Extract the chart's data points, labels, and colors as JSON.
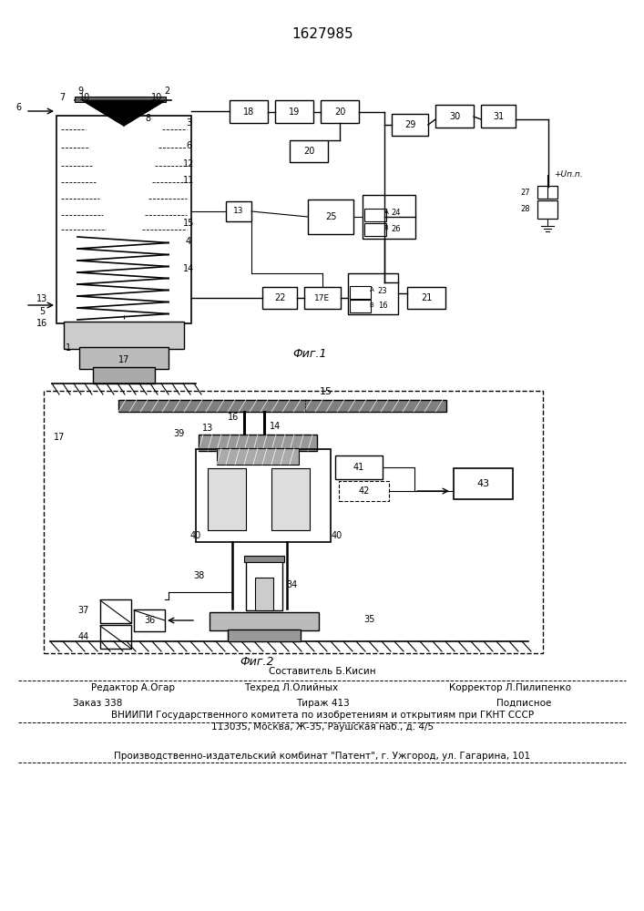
{
  "patent_number": "1627985",
  "fig1_label": "Фиг.1",
  "fig2_label": "Фиг.2",
  "bg_color": "#ffffff",
  "lc": "#1a1a1a",
  "footer": {
    "author": "Составитель Б.Кисин",
    "editor": "Редактор А.Огар",
    "tech": "Техред Л.Олийных",
    "corrector": "Корректор Л.Пилипенко",
    "order": "Заказ 338",
    "tirazh": "Тираж 413",
    "podpis": "Подписное",
    "vniip1": "ВНИИПИ Государственного комитета по изобретениям и открытиям при ГКНТ СССР",
    "vniip2": "113035, Москва, Ж-35, Раушская наб., д. 4/5",
    "patent_pub": "Производственно-издательский комбинат \"Патент\", г. Ужгород, ул. Гагарина, 101"
  }
}
